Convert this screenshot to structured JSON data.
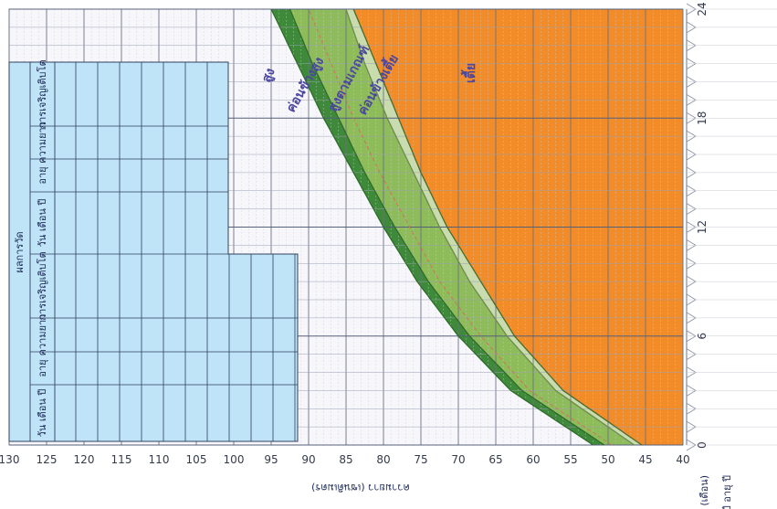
{
  "chart_data": {
    "type": "line",
    "orientation": "rotated-90",
    "xlabel": "อายุ (เดือน)",
    "ylabel": "ความยาว (เซนติเมตร)",
    "side_note": "ปี อายุ ปี",
    "xlim": [
      0,
      24
    ],
    "ylim": [
      40,
      130
    ],
    "x_ticks": [
      0,
      6,
      12,
      18,
      24
    ],
    "y_ticks": [
      130,
      125,
      120,
      115,
      110,
      105,
      100,
      95,
      90,
      85,
      80,
      75,
      70,
      65,
      60,
      55,
      50,
      45,
      40
    ],
    "grid": true,
    "x": [
      0,
      3,
      6,
      9,
      12,
      15,
      18,
      21,
      24
    ],
    "series": [
      {
        "name": "สูง",
        "values": [
          52,
          63,
          70,
          75.5,
          80,
          84,
          88,
          91.5,
          95
        ]
      },
      {
        "name": "ค่อนข้างสูง",
        "values": [
          50.5,
          61.5,
          68.5,
          74,
          78.5,
          82.5,
          86,
          89.5,
          92.5
        ]
      },
      {
        "name": "สูงตามเกณฑ์",
        "values": [
          49.5,
          60.5,
          67,
          72.5,
          76.5,
          80.5,
          84,
          87,
          90
        ]
      },
      {
        "name": "ค่อนข้างเตี้ย",
        "values": [
          46.5,
          57,
          63.5,
          68.5,
          72.5,
          76,
          79.5,
          82.5,
          85
        ]
      },
      {
        "name": "เตี้ย",
        "values": [
          45.5,
          56,
          62.5,
          67,
          71.5,
          75,
          78,
          81,
          84
        ]
      }
    ],
    "zone_labels": [
      "สูง",
      "ค่อนข้างสูง",
      "สูงตามเกณฑ์",
      "ค่อนข้างเตี้ย",
      "เตี้ย"
    ],
    "colors": {
      "tall": "#f7f7fb",
      "normal": "#8fbc5a",
      "short": "#f28c28",
      "dark_band": "#3f8a3a",
      "light_band": "#c8dcae",
      "record_table": "#bfe3f7"
    }
  },
  "record_table": {
    "title": "ผลการวัด",
    "headers": [
      "วัน เดือน ปี",
      "อายุ",
      "ความยาว",
      "การเจริญเติบโต"
    ]
  }
}
